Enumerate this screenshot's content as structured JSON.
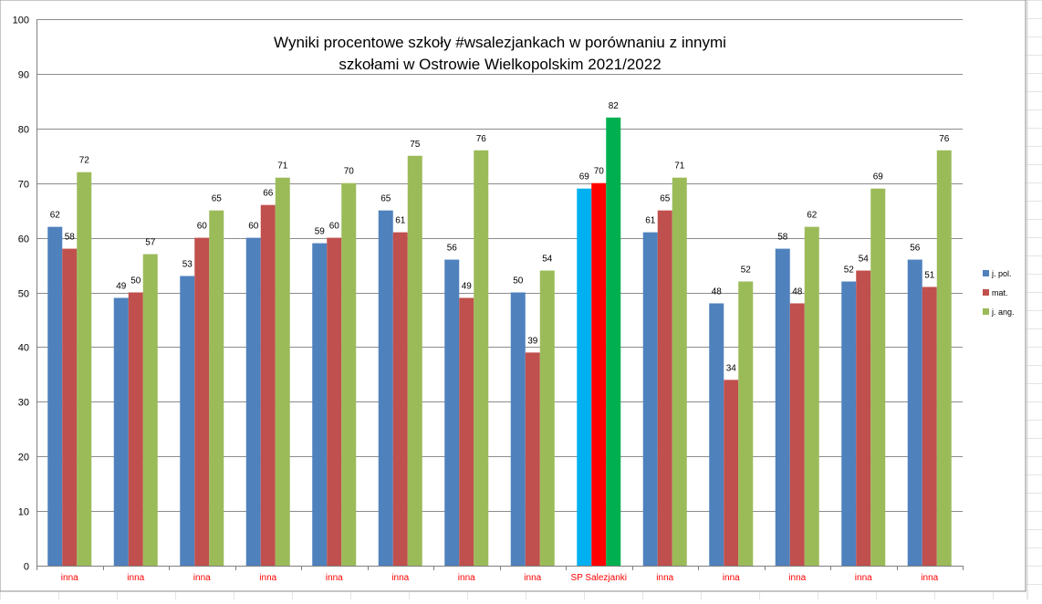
{
  "chart_data": {
    "type": "bar",
    "title_lines": [
      "Wyniki procentowe szkoły #wsalezjankach w porównaniu z  innymi",
      "szkołami w Ostrowie Wielkopolskim 2021/2022"
    ],
    "categories": [
      "inna",
      "inna",
      "inna",
      "inna",
      "inna",
      "inna",
      "inna",
      "inna",
      "SP Salezjanki",
      "inna",
      "inna",
      "inna",
      "inna",
      "inna"
    ],
    "series": [
      {
        "name": "j. pol.",
        "color": "#4f81bd",
        "values": [
          62,
          49,
          53,
          60,
          59,
          65,
          56,
          50,
          69,
          61,
          48,
          58,
          52,
          56
        ]
      },
      {
        "name": "mat.",
        "color": "#c0504d",
        "values": [
          58,
          50,
          60,
          66,
          60,
          61,
          49,
          39,
          70,
          65,
          34,
          48,
          54,
          51
        ]
      },
      {
        "name": "j. ang.",
        "color": "#9bbb59",
        "values": [
          72,
          57,
          65,
          71,
          70,
          75,
          76,
          54,
          82,
          71,
          52,
          62,
          69,
          76
        ]
      }
    ],
    "highlight": {
      "category_index": 8,
      "colors": [
        "#00b0f0",
        "#ff0000",
        "#00b050"
      ]
    },
    "ylim": [
      0,
      100
    ],
    "yticks": [
      0,
      10,
      20,
      30,
      40,
      50,
      60,
      70,
      80,
      90,
      100
    ],
    "grid": true,
    "legend_position": "right",
    "category_label_color": "#ff0000",
    "xlabel": "",
    "ylabel": ""
  }
}
